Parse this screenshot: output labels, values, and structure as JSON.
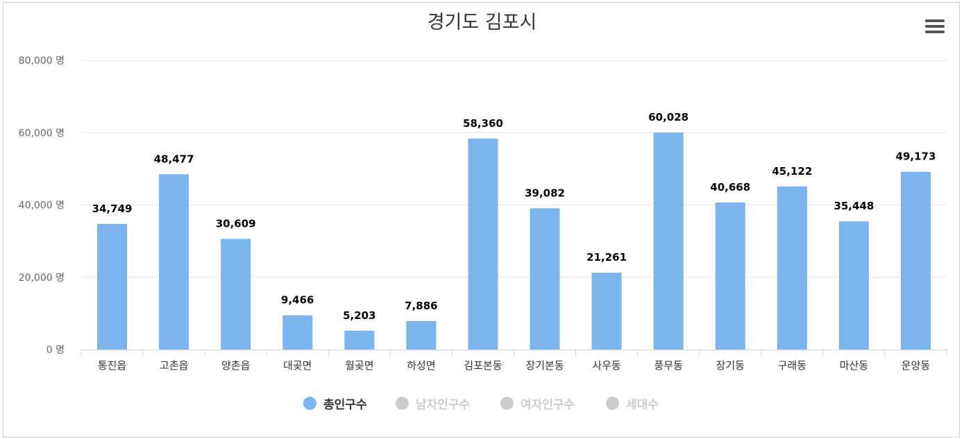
{
  "chart_data": {
    "type": "bar",
    "title": "경기도 김포시",
    "categories": [
      "통진읍",
      "고촌읍",
      "양촌읍",
      "대곶면",
      "월곶면",
      "하성면",
      "김포본동",
      "장기본동",
      "사우동",
      "풍무동",
      "장기동",
      "구래동",
      "마산동",
      "운양동"
    ],
    "series": [
      {
        "name": "총인구수",
        "values": [
          34749,
          48477,
          30609,
          9466,
          5203,
          7886,
          58360,
          39082,
          21261,
          60028,
          40668,
          45122,
          35448,
          49173
        ]
      }
    ],
    "value_labels": [
      "34,749",
      "48,477",
      "30,609",
      "9,466",
      "5,203",
      "7,886",
      "58,360",
      "39,082",
      "21,261",
      "60,028",
      "40,668",
      "45,122",
      "35,448",
      "49,173"
    ],
    "y_ticks": [
      0,
      20000,
      40000,
      60000,
      80000
    ],
    "y_tick_labels": [
      "0 명",
      "20,000 명",
      "40,000 명",
      "60,000 명",
      "80,000 명"
    ],
    "ylim": [
      0,
      80000
    ],
    "grid": true,
    "legend_position": "bottom-center"
  },
  "legend": {
    "items": [
      {
        "label": "총인구수",
        "active": true,
        "color": "#7cb5ec"
      },
      {
        "label": "남자인구수",
        "active": false,
        "color": "#cccccc"
      },
      {
        "label": "여자인구수",
        "active": false,
        "color": "#cccccc"
      },
      {
        "label": "세대수",
        "active": false,
        "color": "#cccccc"
      }
    ]
  },
  "colors": {
    "bar": "#7cb5ec",
    "grid": "#e6e6e6",
    "axis": "#ccd6eb",
    "label_text": "#000000",
    "axis_text": "#666666",
    "legend_active_text": "#333333",
    "legend_inactive_text": "#cccccc"
  },
  "icons": {
    "menu": "hamburger-menu-icon"
  }
}
